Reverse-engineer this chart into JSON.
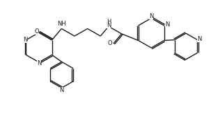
{
  "bg_color": "#ffffff",
  "line_color": "#1a1a1a",
  "line_width": 1.0,
  "fig_width": 3.03,
  "fig_height": 1.75,
  "dpi": 100,
  "font_size": 6.0,
  "xlim": [
    0,
    10.1
  ],
  "ylim": [
    0,
    5.83
  ]
}
